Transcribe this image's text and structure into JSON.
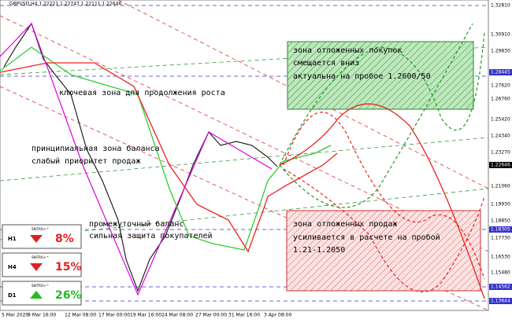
{
  "header": {
    "title": "GBPUSD,H4 1.22221 1.22747 1.22111 1.22646"
  },
  "price_axis": [
    "1.32810",
    "1.30910",
    "1.29830",
    "1.28445",
    "1.27620",
    "1.26760",
    "1.25420",
    "1.24340",
    "1.23270",
    "1.22646",
    "1.21060",
    "1.19930",
    "1.18850",
    "1.18305",
    "1.17730",
    "1.16530",
    "1.15480",
    "1.14562",
    "1.13644"
  ],
  "date_axis": [
    "5 Mar 2020",
    "9 Mar 16:00",
    "12 Mar 08:00",
    "17 Mar 00:00",
    "19 Mar 16:00",
    "24 Mar 08:00",
    "27 Mar 00:00",
    "31 Mar 16:00",
    "3 Apr 08:00"
  ],
  "annotations": [
    "ключевая зона для продолжения роста",
    "принципиальная зона баланса",
    "слабый приоритет продаж",
    "промежуточный баланс",
    "сильная защита покупателей"
  ],
  "buy_zone": [
    "зона отложенных покупок",
    "смещается вниз",
    "актуальна на пробое 1.2600/50"
  ],
  "sell_zone": [
    "зона отложенных продаж",
    "усиливается в расчете на пробой",
    "1.21-1.2050"
  ],
  "widgets": [
    {
      "brand": "SNITRO+™",
      "timeframe": "H1",
      "value": "8%"
    },
    {
      "brand": "SNITRO+™",
      "timeframe": "H4",
      "value": "15%"
    },
    {
      "brand": "SNITRO+™",
      "timeframe": "D1",
      "value": "26%"
    }
  ]
}
